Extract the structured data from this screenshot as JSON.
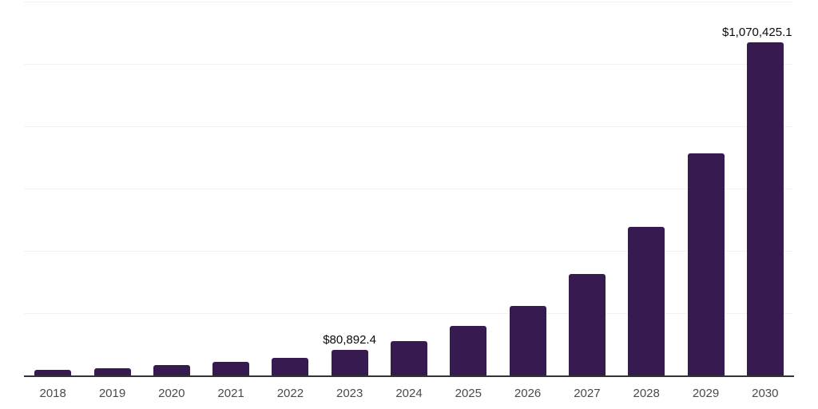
{
  "chart_data": {
    "type": "bar",
    "title": "",
    "xlabel": "",
    "ylabel": "",
    "categories": [
      "2018",
      "2019",
      "2020",
      "2021",
      "2022",
      "2023",
      "2024",
      "2025",
      "2026",
      "2027",
      "2028",
      "2029",
      "2030"
    ],
    "values": [
      19000,
      23000,
      34000,
      43000,
      55600,
      80892.4,
      111000,
      158000,
      224000,
      325000,
      478000,
      713000,
      1070425.1
    ],
    "labeled_points": [
      {
        "category": "2023",
        "label": "$80,892.4"
      },
      {
        "category": "2030",
        "label": "$1,070,425.1"
      }
    ],
    "ylim": [
      0,
      1200000
    ],
    "gridline_step": 200000,
    "grid": "horizontal",
    "legend": "none",
    "bar_color": "#371a4f",
    "axis_color": "#333333",
    "gridline_color": "#f2f2f2",
    "value_label_color": "#0a0a0a",
    "tick_label_color": "#4a4a4a"
  }
}
